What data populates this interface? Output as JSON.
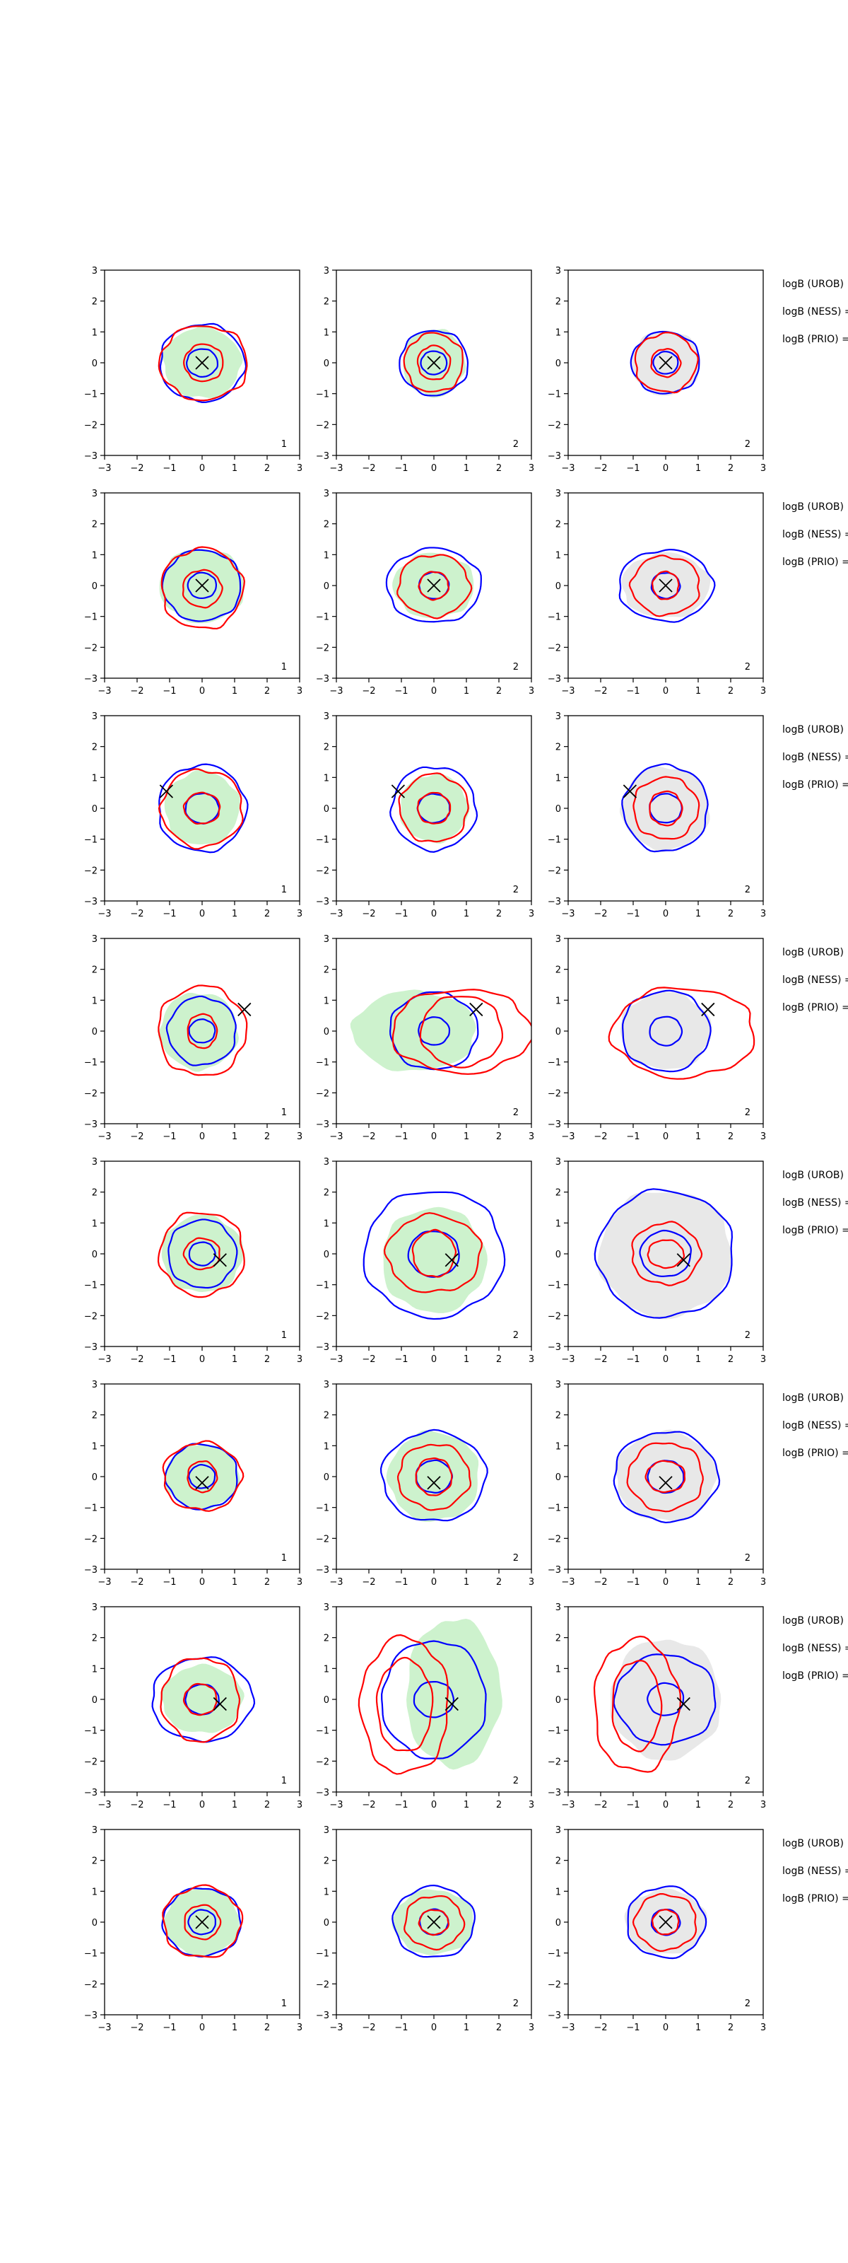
{
  "figure": {
    "type": "contour-grid",
    "chart_data": {
      "type": "contour",
      "xlim": [
        -3,
        3
      ],
      "ylim": [
        -3,
        3
      ],
      "xticks": [
        -3,
        -2,
        -1,
        0,
        1,
        2,
        3
      ],
      "yticks": [
        -3,
        -2,
        -1,
        0,
        1,
        2,
        3
      ],
      "grid": false,
      "colors": {
        "filled_green": "#cdf2cd",
        "filled_gray": "#e8e8e8",
        "contour_blue": "#0000ff",
        "contour_red": "#ff0000",
        "marker": "#000000"
      },
      "side_labels": [
        "logB (UROB)",
        "logB (NESS) =",
        "logB (PRIO) ="
      ],
      "rows": [
        {
          "marker": [
            0.0,
            0.0
          ],
          "panels": [
            {
              "fill": "green",
              "fill_rx": 1.2,
              "fill_ry": 1.15,
              "fill_cx": 0.0,
              "fill_cy": 0.0,
              "blue": [
                1.3,
                1.25
              ],
              "red": [
                [
                  1.35,
                  1.2
                ],
                [
                  0.6,
                  0.6
                ]
              ],
              "red_center": [
                0.05,
                0.0
              ],
              "corner_label": "1"
            },
            {
              "fill": "green",
              "fill_rx": 0.95,
              "fill_ry": 1.1,
              "fill_cx": 0.0,
              "fill_cy": 0.0,
              "blue": [
                1.05,
                1.05
              ],
              "red": [
                [
                  0.9,
                  0.95
                ],
                [
                  0.5,
                  0.55
                ]
              ],
              "red_center": [
                0.0,
                0.0
              ],
              "corner_label": "2"
            },
            {
              "fill": "gray",
              "fill_rx": 1.05,
              "fill_ry": 1.05,
              "fill_cx": 0.0,
              "fill_cy": 0.0,
              "blue": [
                1.05,
                1.0
              ],
              "red": [
                [
                  0.95,
                  0.95
                ],
                [
                  0.45,
                  0.45
                ]
              ],
              "red_center": [
                0.0,
                0.0
              ],
              "corner_label": "2"
            }
          ]
        },
        {
          "marker": [
            0.0,
            0.0
          ],
          "panels": [
            {
              "fill": "green",
              "fill_rx": 1.3,
              "fill_ry": 1.2,
              "fill_cx": 0.0,
              "fill_cy": 0.0,
              "blue": [
                1.2,
                1.15
              ],
              "red": [
                [
                  1.25,
                  1.3
                ],
                [
                  0.6,
                  0.6
                ]
              ],
              "red_center": [
                0.0,
                -0.1
              ],
              "corner_label": "1"
            },
            {
              "fill": "green",
              "fill_rx": 1.25,
              "fill_ry": 1.05,
              "fill_cx": 0.0,
              "fill_cy": 0.0,
              "blue": [
                1.45,
                1.2
              ],
              "red": [
                [
                  1.1,
                  1.0
                ],
                [
                  0.45,
                  0.45
                ]
              ],
              "red_center": [
                0.0,
                0.0
              ],
              "corner_label": "2"
            },
            {
              "fill": "gray",
              "fill_rx": 1.35,
              "fill_ry": 1.05,
              "fill_cx": 0.0,
              "fill_cy": 0.0,
              "blue": [
                1.45,
                1.15
              ],
              "red": [
                [
                  1.05,
                  0.95
                ],
                [
                  0.4,
                  0.45
                ]
              ],
              "red_center": [
                0.0,
                0.0
              ],
              "corner_label": "2"
            }
          ]
        },
        {
          "marker": [
            -1.1,
            0.55
          ],
          "panels": [
            {
              "fill": "green",
              "fill_rx": 1.15,
              "fill_ry": 1.2,
              "fill_cx": 0.0,
              "fill_cy": 0.0,
              "blue": [
                1.35,
                1.4
              ],
              "red": [
                [
                  1.25,
                  1.25
                ],
                [
                  0.55,
                  0.5
                ]
              ],
              "red_center": [
                0.0,
                0.0
              ],
              "corner_label": "1"
            },
            {
              "fill": "green",
              "fill_rx": 1.05,
              "fill_ry": 1.1,
              "fill_cx": 0.0,
              "fill_cy": 0.0,
              "blue": [
                1.3,
                1.35
              ],
              "red": [
                [
                  1.05,
                  1.1
                ],
                [
                  0.5,
                  0.5
                ]
              ],
              "red_center": [
                0.0,
                0.0
              ],
              "corner_label": "2"
            },
            {
              "fill": "gray",
              "fill_rx": 1.35,
              "fill_ry": 1.35,
              "fill_cx": 0.0,
              "fill_cy": 0.0,
              "blue": [
                1.3,
                1.4
              ],
              "red": [
                [
                  1.0,
                  1.0
                ],
                [
                  0.5,
                  0.55
                ]
              ],
              "red_center": [
                0.0,
                0.0
              ],
              "corner_label": "2"
            }
          ]
        },
        {
          "marker": [
            1.3,
            0.7
          ],
          "panels": [
            {
              "fill": "green",
              "fill_rx": 1.2,
              "fill_ry": 1.25,
              "fill_cx": -0.1,
              "fill_cy": 0.0,
              "blue": [
                1.05,
                1.1
              ],
              "red": [
                [
                  1.35,
                  1.45
                ],
                [
                  0.45,
                  0.55
                ]
              ],
              "red_center": [
                0.0,
                0.0
              ],
              "corner_label": "1"
            },
            {
              "fill": "green",
              "fill_rx": 1.9,
              "fill_ry": 1.3,
              "fill_cx": -0.6,
              "fill_cy": 0.0,
              "blue": [
                1.35,
                1.25
              ],
              "red": [
                [
                  2.15,
                  1.35
                ],
                [
                  1.25,
                  1.15
                ]
              ],
              "red_center": [
                0.85,
                0.0
              ],
              "corner_label": "2"
            },
            {
              "fill": "gray",
              "fill_rx": 1.4,
              "fill_ry": 1.25,
              "fill_cx": 0.0,
              "fill_cy": 0.0,
              "blue": [
                1.35,
                1.3
              ],
              "red": [
                [
                  2.2,
                  1.45
                ],
                [
                  0.0,
                  0.0
                ]
              ],
              "red_center": [
                0.55,
                -0.05
              ],
              "corner_label": "2"
            }
          ]
        },
        {
          "marker": [
            0.55,
            -0.2
          ],
          "panels": [
            {
              "fill": "green",
              "fill_rx": 1.25,
              "fill_ry": 1.25,
              "fill_cx": 0.0,
              "fill_cy": 0.0,
              "blue": [
                1.05,
                1.1
              ],
              "red": [
                [
                  1.3,
                  1.35
                ],
                [
                  0.55,
                  0.5
                ]
              ],
              "red_center": [
                0.0,
                0.0
              ],
              "corner_label": "1"
            },
            {
              "fill": "green",
              "fill_rx": 1.6,
              "fill_ry": 1.7,
              "fill_cx": 0.0,
              "fill_cy": -0.2,
              "blue": [
                2.15,
                2.05
              ],
              "red": [
                [
                  1.45,
                  1.25
                ],
                [
                  0.65,
                  0.75
                ]
              ],
              "red_center": [
                0.0,
                0.0
              ],
              "corner_label": "2"
            },
            {
              "fill": "gray",
              "fill_rx": 2.05,
              "fill_ry": 2.05,
              "fill_cx": 0.0,
              "fill_cy": 0.0,
              "blue": [
                2.1,
                2.05
              ],
              "red": [
                [
                  1.05,
                  1.0
                ],
                [
                  0.55,
                  0.45
                ]
              ],
              "red_center": [
                0.0,
                0.0
              ],
              "corner_label": "2"
            }
          ]
        },
        {
          "marker": [
            0.0,
            -0.2
          ],
          "panels": [
            {
              "fill": "green",
              "fill_rx": 1.15,
              "fill_ry": 1.05,
              "fill_cx": 0.0,
              "fill_cy": 0.0,
              "blue": [
                1.1,
                1.05
              ],
              "red": [
                [
                  1.2,
                  1.1
                ],
                [
                  0.45,
                  0.5
                ]
              ],
              "red_center": [
                0.0,
                0.0
              ],
              "corner_label": "1"
            },
            {
              "fill": "green",
              "fill_rx": 1.4,
              "fill_ry": 1.45,
              "fill_cx": 0.0,
              "fill_cy": 0.0,
              "blue": [
                1.6,
                1.45
              ],
              "red": [
                [
                  1.1,
                  1.05
                ],
                [
                  0.55,
                  0.6
                ]
              ],
              "red_center": [
                0.0,
                0.0
              ],
              "corner_label": "2"
            },
            {
              "fill": "gray",
              "fill_rx": 1.55,
              "fill_ry": 1.45,
              "fill_cx": 0.0,
              "fill_cy": 0.0,
              "blue": [
                1.6,
                1.45
              ],
              "red": [
                [
                  1.15,
                  1.1
                ],
                [
                  0.6,
                  0.5
                ]
              ],
              "red_center": [
                0.0,
                0.0
              ],
              "corner_label": "2"
            }
          ]
        },
        {
          "marker": [
            0.55,
            -0.15
          ],
          "panels": [
            {
              "fill": "green",
              "fill_rx": 1.25,
              "fill_ry": 1.1,
              "fill_cx": 0.0,
              "fill_cy": 0.0,
              "blue": [
                1.55,
                1.35
              ],
              "red": [
                [
                  1.2,
                  1.35
                ],
                [
                  0.5,
                  0.5
                ]
              ],
              "red_center": [
                -0.05,
                0.0
              ],
              "corner_label": "1"
            },
            {
              "fill": "green",
              "fill_rx": 1.45,
              "fill_ry": 2.4,
              "fill_cx": 0.6,
              "fill_cy": 0.2,
              "blue": [
                1.6,
                1.9
              ],
              "red": [
                [
                  1.35,
                  2.2
                ],
                [
                  0.85,
                  1.5
                ]
              ],
              "red_center": [
                -0.9,
                -0.2
              ],
              "corner_label": "2"
            },
            {
              "fill": "gray",
              "fill_rx": 1.7,
              "fill_ry": 1.95,
              "fill_cx": 0.0,
              "fill_cy": 0.0,
              "blue": [
                1.55,
                1.45
              ],
              "red": [
                [
                  1.3,
                  2.15
                ],
                [
                  0.75,
                  1.45
                ]
              ],
              "red_center": [
                -0.9,
                -0.2
              ],
              "corner_label": "2"
            }
          ]
        },
        {
          "marker": [
            0.0,
            0.0
          ],
          "panels": [
            {
              "fill": "green",
              "fill_rx": 1.15,
              "fill_ry": 1.1,
              "fill_cx": 0.0,
              "fill_cy": 0.0,
              "blue": [
                1.2,
                1.1
              ],
              "red": [
                [
                  1.2,
                  1.15
                ],
                [
                  0.55,
                  0.55
                ]
              ],
              "red_center": [
                0.0,
                0.0
              ],
              "corner_label": "1"
            },
            {
              "fill": "green",
              "fill_rx": 1.25,
              "fill_ry": 1.05,
              "fill_cx": 0.0,
              "fill_cy": 0.0,
              "blue": [
                1.25,
                1.15
              ],
              "red": [
                [
                  0.9,
                  0.85
                ],
                [
                  0.45,
                  0.4
                ]
              ],
              "red_center": [
                0.0,
                0.0
              ],
              "corner_label": "2"
            },
            {
              "fill": "gray",
              "fill_rx": 1.25,
              "fill_ry": 1.05,
              "fill_cx": 0.0,
              "fill_cy": 0.0,
              "blue": [
                1.2,
                1.15
              ],
              "red": [
                [
                  0.95,
                  0.9
                ],
                [
                  0.4,
                  0.4
                ]
              ],
              "red_center": [
                0.0,
                0.0
              ],
              "corner_label": "2"
            }
          ]
        }
      ]
    }
  }
}
